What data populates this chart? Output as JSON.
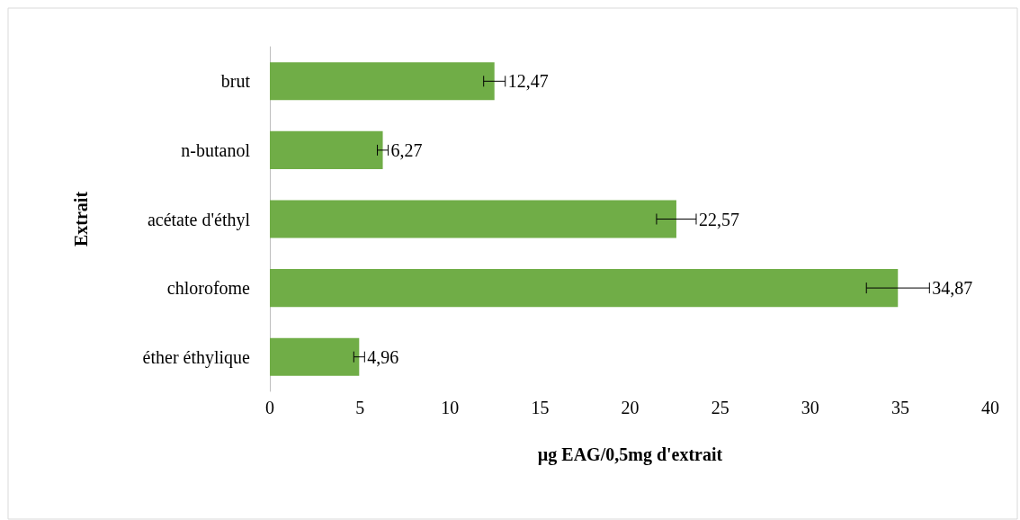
{
  "chart_data": {
    "type": "bar",
    "orientation": "horizontal",
    "xlabel": "µg EAG/0,5mg d'extrait",
    "ylabel": "Extrait",
    "categories": [
      "brut",
      "n-butanol",
      "acétate d'éthyl",
      "chlorofome",
      "éther éthylique"
    ],
    "values": [
      12.47,
      6.27,
      22.57,
      34.87,
      4.96
    ],
    "errors": [
      0.6,
      0.3,
      1.1,
      1.75,
      0.3
    ],
    "value_labels": [
      "12,47",
      "6,27",
      "22,57",
      "34,87",
      "4,96"
    ],
    "color": "#70ad47",
    "xlim": [
      0,
      40
    ],
    "xticks": [
      0,
      5,
      10,
      15,
      20,
      25,
      30,
      35,
      40
    ],
    "grid": false
  }
}
